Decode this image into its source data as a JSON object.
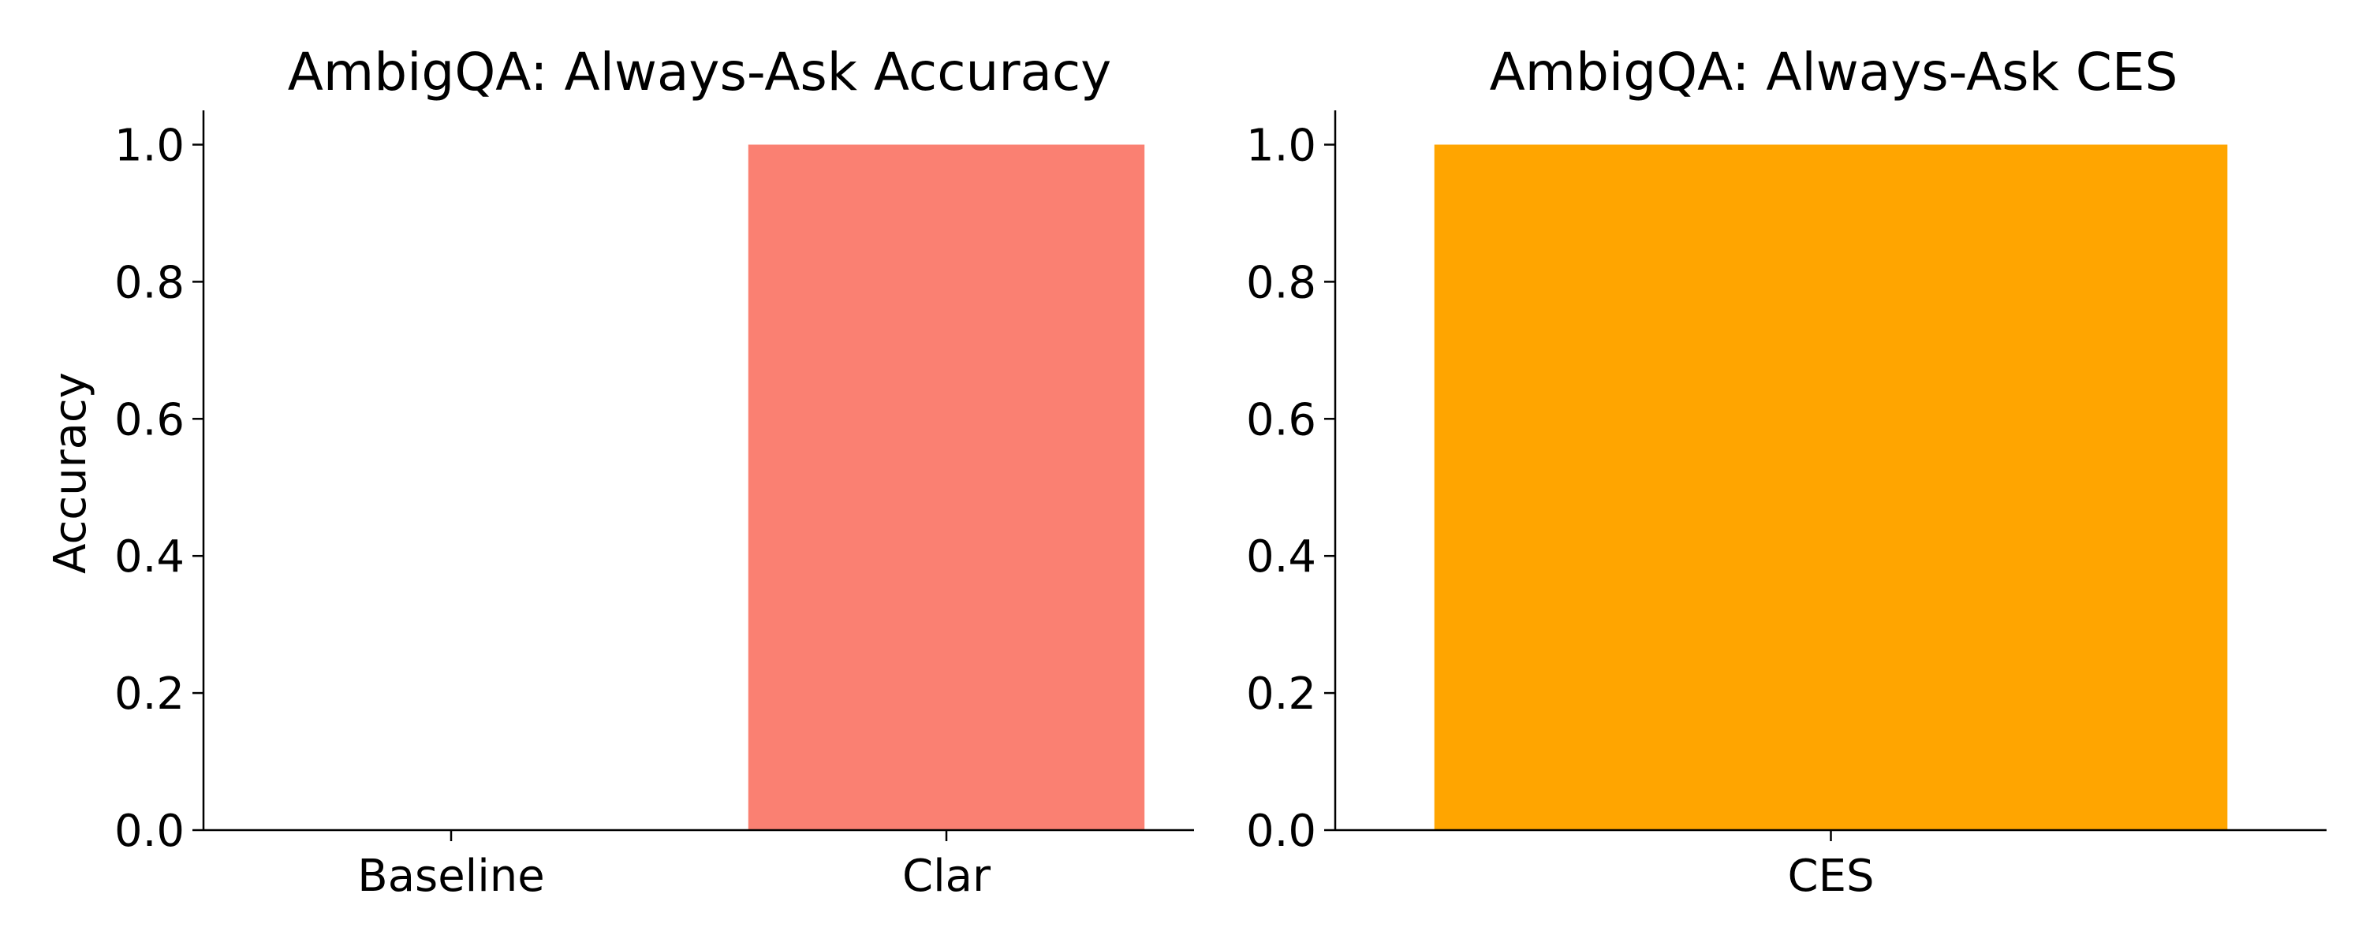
{
  "chart_data": [
    {
      "type": "bar",
      "title": "AmbigQA: Always-Ask Accuracy",
      "xlabel": "",
      "ylabel": "Accuracy",
      "categories": [
        "Baseline",
        "Clar"
      ],
      "values": [
        0.0,
        1.0
      ],
      "colors": [
        "#fa8072",
        "#fa8072"
      ],
      "ylim": [
        0,
        1.05
      ],
      "yticks": [
        "0.0",
        "0.2",
        "0.4",
        "0.6",
        "0.8",
        "1.0"
      ],
      "grid": false
    },
    {
      "type": "bar",
      "title": "AmbigQA: Always-Ask CES",
      "xlabel": "",
      "ylabel": "",
      "categories": [
        "CES"
      ],
      "values": [
        1.0
      ],
      "colors": [
        "#ffa500"
      ],
      "ylim": [
        0,
        1.05
      ],
      "yticks": [
        "0.0",
        "0.2",
        "0.4",
        "0.6",
        "0.8",
        "1.0"
      ],
      "grid": false
    }
  ]
}
